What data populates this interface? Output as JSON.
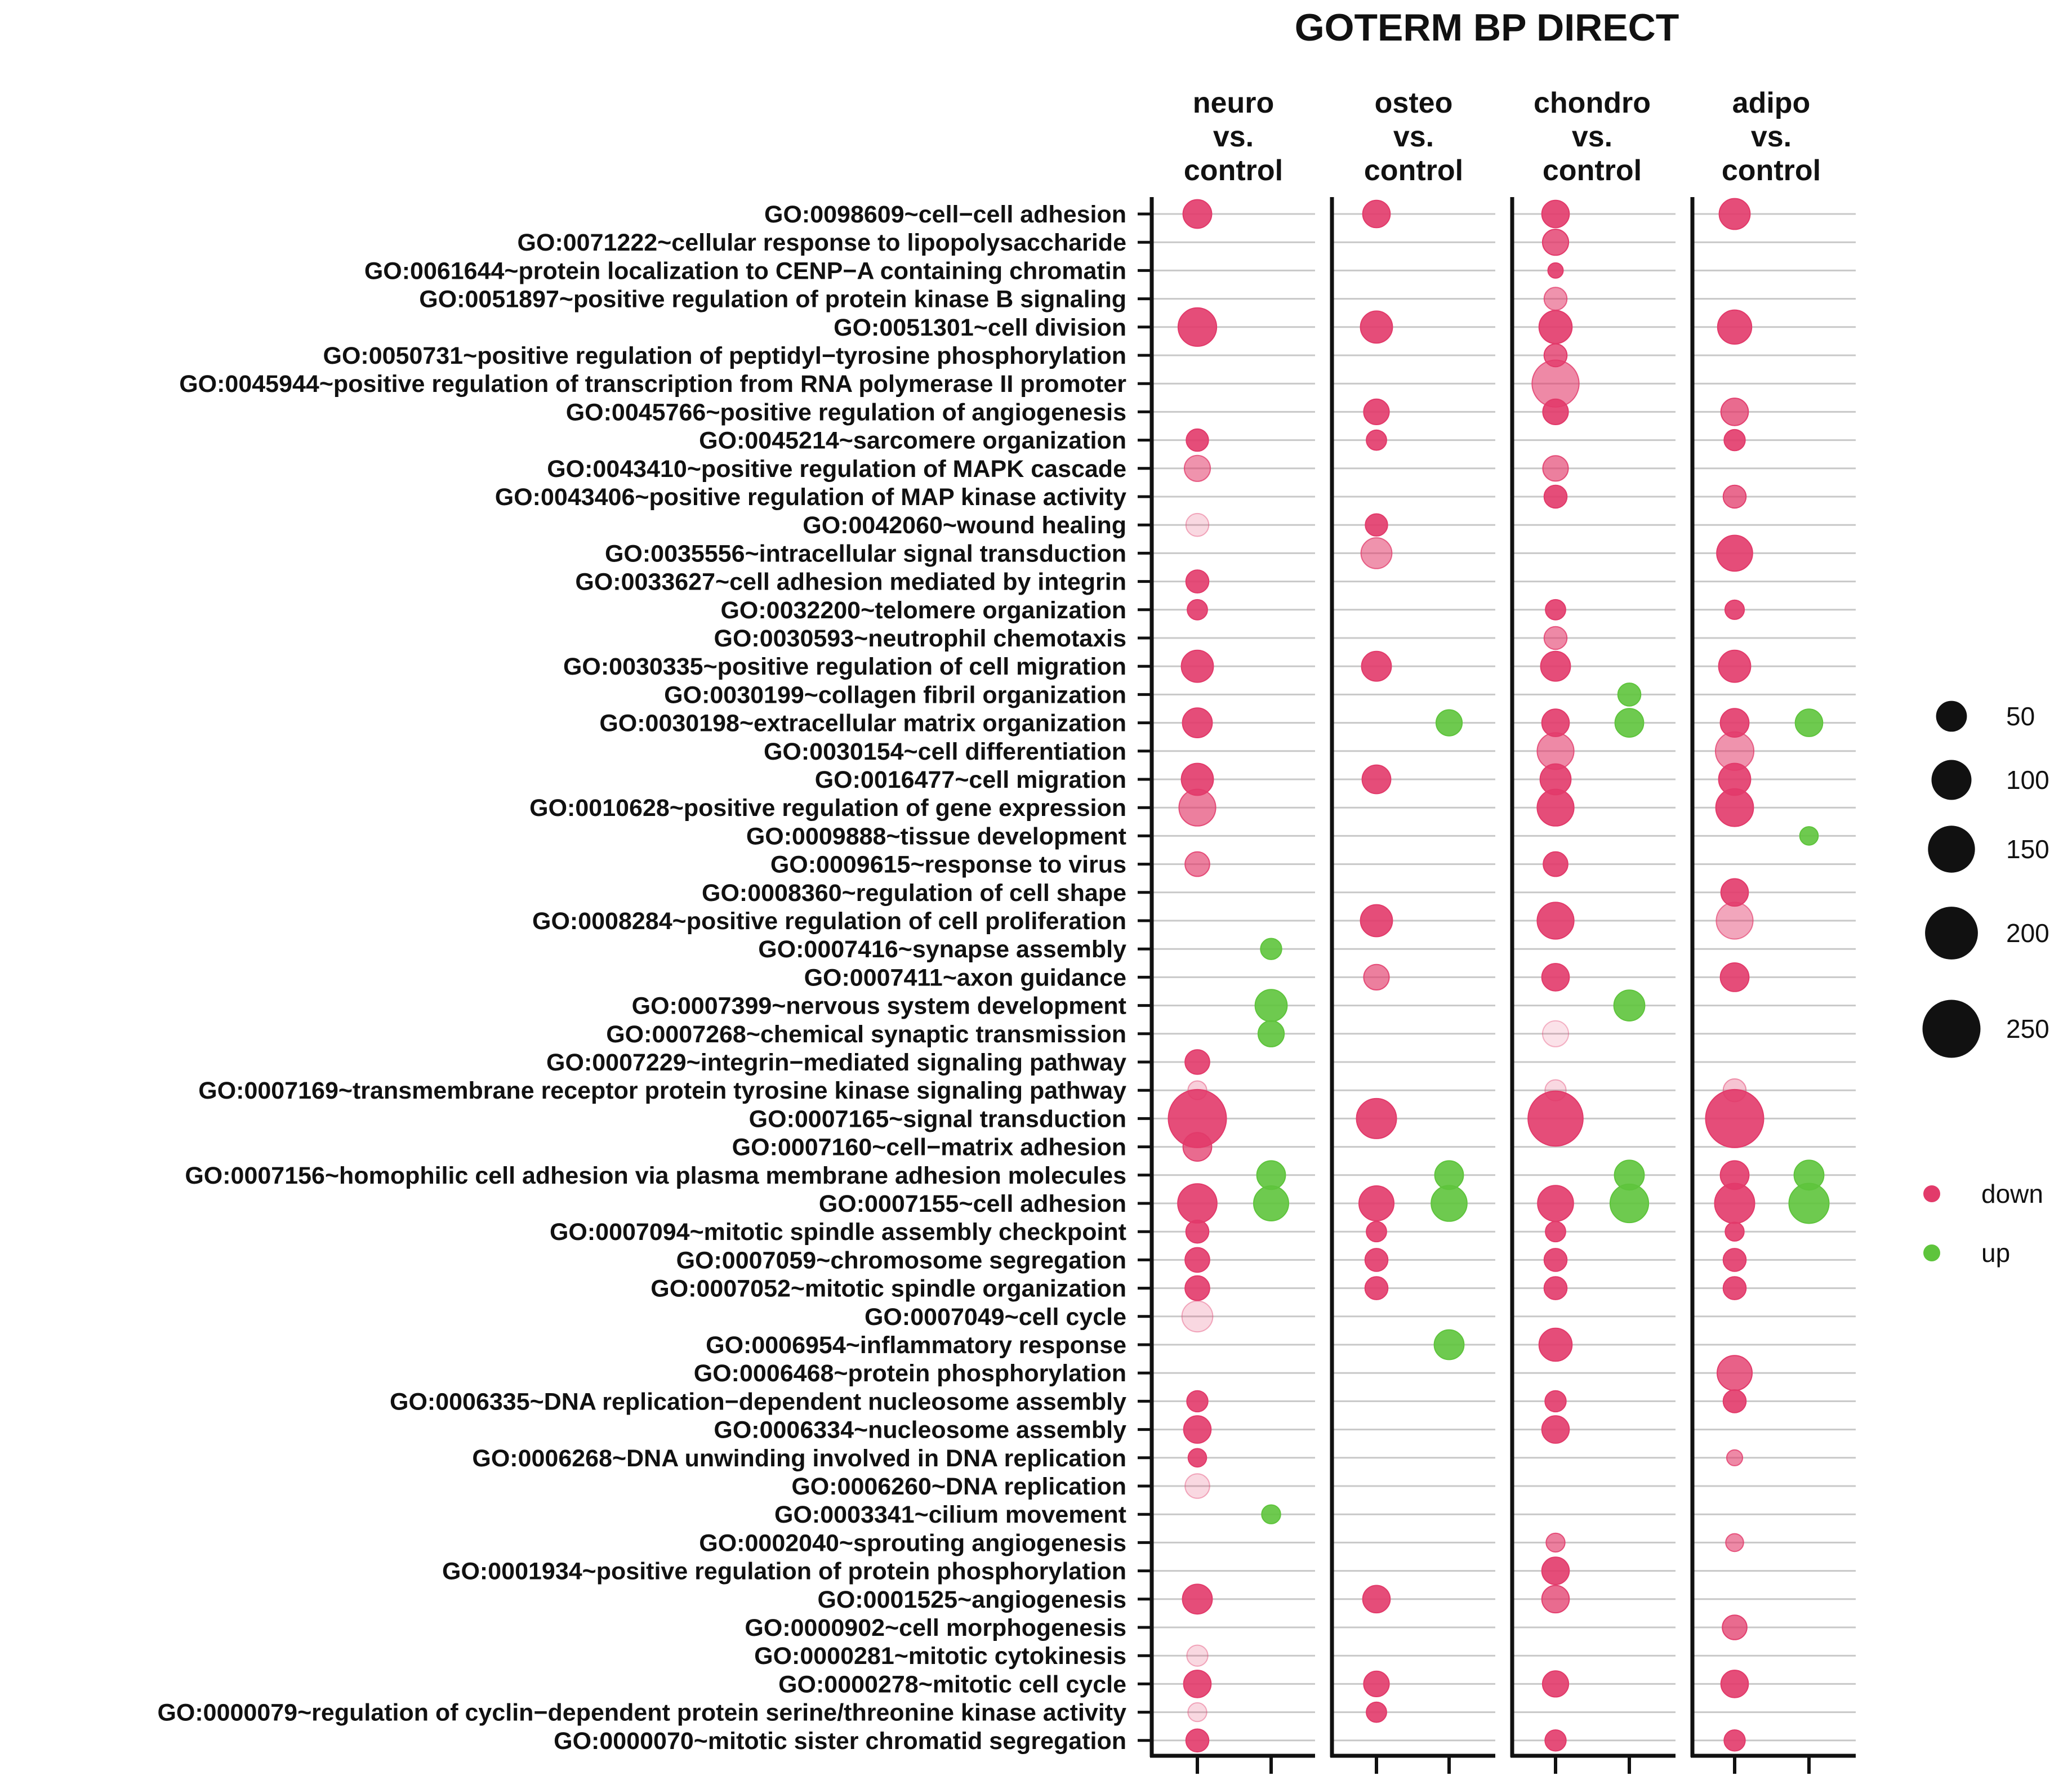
{
  "chart_data": {
    "type": "bubble",
    "title": "GOTERM BP DIRECT",
    "panels": [
      {
        "label": [
          "neuro",
          "vs.",
          "control"
        ]
      },
      {
        "label": [
          "osteo",
          "vs.",
          "control"
        ]
      },
      {
        "label": [
          "chondro",
          "vs.",
          "control"
        ]
      },
      {
        "label": [
          "adipo",
          "vs.",
          "control"
        ]
      }
    ],
    "directions": [
      "down",
      "up"
    ],
    "colors": {
      "down": "#e23a6a",
      "up": "#5ec43c",
      "axis": "#111111",
      "grid": "#c8c8c8"
    },
    "size_legend": [
      {
        "label": "50",
        "value": 50
      },
      {
        "label": "100",
        "value": 100
      },
      {
        "label": "150",
        "value": 150
      },
      {
        "label": "200",
        "value": 200
      },
      {
        "label": "250",
        "value": 250
      }
    ],
    "color_legend": [
      {
        "label": "down",
        "dir": "down"
      },
      {
        "label": "up",
        "dir": "up"
      }
    ],
    "terms": [
      "GO:0098609~cell−cell adhesion",
      "GO:0071222~cellular response to lipopolysaccharide",
      "GO:0061644~protein localization to CENP−A containing chromatin",
      "GO:0051897~positive regulation of protein kinase B signaling",
      "GO:0051301~cell division",
      "GO:0050731~positive regulation of peptidyl−tyrosine phosphorylation",
      "GO:0045944~positive regulation of transcription from RNA polymerase II promoter",
      "GO:0045766~positive regulation of angiogenesis",
      "GO:0045214~sarcomere organization",
      "GO:0043410~positive regulation of MAPK cascade",
      "GO:0043406~positive regulation of MAP kinase activity",
      "GO:0042060~wound healing",
      "GO:0035556~intracellular signal transduction",
      "GO:0033627~cell adhesion mediated by integrin",
      "GO:0032200~telomere organization",
      "GO:0030593~neutrophil chemotaxis",
      "GO:0030335~positive regulation of cell migration",
      "GO:0030199~collagen fibril organization",
      "GO:0030198~extracellular matrix organization",
      "GO:0030154~cell differentiation",
      "GO:0016477~cell migration",
      "GO:0010628~positive regulation of gene expression",
      "GO:0009888~tissue development",
      "GO:0009615~response to virus",
      "GO:0008360~regulation of cell shape",
      "GO:0008284~positive regulation of cell proliferation",
      "GO:0007416~synapse assembly",
      "GO:0007411~axon guidance",
      "GO:0007399~nervous system development",
      "GO:0007268~chemical synaptic transmission",
      "GO:0007229~integrin−mediated signaling pathway",
      "GO:0007169~transmembrane receptor protein tyrosine kinase signaling pathway",
      "GO:0007165~signal transduction",
      "GO:0007160~cell−matrix adhesion",
      "GO:0007156~homophilic cell adhesion via plasma membrane adhesion molecules",
      "GO:0007155~cell adhesion",
      "GO:0007094~mitotic spindle assembly checkpoint",
      "GO:0007059~chromosome segregation",
      "GO:0007052~mitotic spindle organization",
      "GO:0007049~cell cycle",
      "GO:0006954~inflammatory response",
      "GO:0006468~protein phosphorylation",
      "GO:0006335~DNA replication−dependent nucleosome assembly",
      "GO:0006334~nucleosome assembly",
      "GO:0006268~DNA unwinding involved in DNA replication",
      "GO:0006260~DNA replication",
      "GO:0003341~cilium movement",
      "GO:0002040~sprouting angiogenesis",
      "GO:0001934~positive regulation of protein phosphorylation",
      "GO:0001525~angiogenesis",
      "GO:0000902~cell morphogenesis",
      "GO:0000281~mitotic cytokinesis",
      "GO:0000278~mitotic cell cycle",
      "GO:0000079~regulation of cyclin−dependent protein serine/threonine kinase activity",
      "GO:0000070~mitotic sister chromatid segregation"
    ],
    "points": [
      {
        "panel": 0,
        "dir": "down",
        "term": 0,
        "count": 40,
        "alpha": 0.9
      },
      {
        "panel": 0,
        "dir": "down",
        "term": 4,
        "count": 90,
        "alpha": 0.9
      },
      {
        "panel": 0,
        "dir": "down",
        "term": 8,
        "count": 18,
        "alpha": 0.9
      },
      {
        "panel": 0,
        "dir": "down",
        "term": 9,
        "count": 30,
        "alpha": 0.55
      },
      {
        "panel": 0,
        "dir": "down",
        "term": 11,
        "count": 20,
        "alpha": 0.2
      },
      {
        "panel": 0,
        "dir": "down",
        "term": 13,
        "count": 20,
        "alpha": 0.9
      },
      {
        "panel": 0,
        "dir": "down",
        "term": 14,
        "count": 13,
        "alpha": 0.9
      },
      {
        "panel": 0,
        "dir": "down",
        "term": 16,
        "count": 55,
        "alpha": 0.9
      },
      {
        "panel": 0,
        "dir": "down",
        "term": 18,
        "count": 45,
        "alpha": 0.9
      },
      {
        "panel": 0,
        "dir": "down",
        "term": 20,
        "count": 55,
        "alpha": 0.9
      },
      {
        "panel": 0,
        "dir": "down",
        "term": 21,
        "count": 80,
        "alpha": 0.65
      },
      {
        "panel": 0,
        "dir": "down",
        "term": 23,
        "count": 25,
        "alpha": 0.65
      },
      {
        "panel": 0,
        "dir": "down",
        "term": 30,
        "count": 25,
        "alpha": 0.9
      },
      {
        "panel": 0,
        "dir": "down",
        "term": 31,
        "count": 10,
        "alpha": 0.25
      },
      {
        "panel": 0,
        "dir": "down",
        "term": 32,
        "count": 250,
        "alpha": 0.9
      },
      {
        "panel": 0,
        "dir": "down",
        "term": 33,
        "count": 40,
        "alpha": 0.75
      },
      {
        "panel": 0,
        "dir": "down",
        "term": 35,
        "count": 95,
        "alpha": 0.9
      },
      {
        "panel": 0,
        "dir": "down",
        "term": 36,
        "count": 20,
        "alpha": 0.9
      },
      {
        "panel": 0,
        "dir": "down",
        "term": 37,
        "count": 25,
        "alpha": 0.9
      },
      {
        "panel": 0,
        "dir": "down",
        "term": 38,
        "count": 25,
        "alpha": 0.9
      },
      {
        "panel": 0,
        "dir": "down",
        "term": 39,
        "count": 50,
        "alpha": 0.2
      },
      {
        "panel": 0,
        "dir": "down",
        "term": 42,
        "count": 15,
        "alpha": 0.9
      },
      {
        "panel": 0,
        "dir": "down",
        "term": 43,
        "count": 35,
        "alpha": 0.9
      },
      {
        "panel": 0,
        "dir": "down",
        "term": 44,
        "count": 9,
        "alpha": 0.9
      },
      {
        "panel": 0,
        "dir": "down",
        "term": 45,
        "count": 25,
        "alpha": 0.2
      },
      {
        "panel": 0,
        "dir": "down",
        "term": 49,
        "count": 45,
        "alpha": 0.9
      },
      {
        "panel": 0,
        "dir": "down",
        "term": 51,
        "count": 15,
        "alpha": 0.2
      },
      {
        "panel": 0,
        "dir": "down",
        "term": 52,
        "count": 35,
        "alpha": 0.9
      },
      {
        "panel": 0,
        "dir": "down",
        "term": 53,
        "count": 10,
        "alpha": 0.2
      },
      {
        "panel": 0,
        "dir": "down",
        "term": 54,
        "count": 20,
        "alpha": 0.9
      },
      {
        "panel": 0,
        "dir": "up",
        "term": 26,
        "count": 15,
        "alpha": 0.9
      },
      {
        "panel": 0,
        "dir": "up",
        "term": 28,
        "count": 55,
        "alpha": 0.9
      },
      {
        "panel": 0,
        "dir": "up",
        "term": 29,
        "count": 30,
        "alpha": 0.9
      },
      {
        "panel": 0,
        "dir": "up",
        "term": 34,
        "count": 40,
        "alpha": 0.9
      },
      {
        "panel": 0,
        "dir": "up",
        "term": 35,
        "count": 70,
        "alpha": 0.9
      },
      {
        "panel": 0,
        "dir": "up",
        "term": 46,
        "count": 10,
        "alpha": 0.9
      },
      {
        "panel": 1,
        "dir": "down",
        "term": 0,
        "count": 35,
        "alpha": 0.9
      },
      {
        "panel": 1,
        "dir": "down",
        "term": 4,
        "count": 55,
        "alpha": 0.9
      },
      {
        "panel": 1,
        "dir": "down",
        "term": 7,
        "count": 28,
        "alpha": 0.9
      },
      {
        "panel": 1,
        "dir": "down",
        "term": 8,
        "count": 13,
        "alpha": 0.9
      },
      {
        "panel": 1,
        "dir": "down",
        "term": 11,
        "count": 18,
        "alpha": 0.9
      },
      {
        "panel": 1,
        "dir": "down",
        "term": 12,
        "count": 50,
        "alpha": 0.55
      },
      {
        "panel": 1,
        "dir": "down",
        "term": 16,
        "count": 45,
        "alpha": 0.9
      },
      {
        "panel": 1,
        "dir": "down",
        "term": 20,
        "count": 40,
        "alpha": 0.9
      },
      {
        "panel": 1,
        "dir": "down",
        "term": 25,
        "count": 55,
        "alpha": 0.9
      },
      {
        "panel": 1,
        "dir": "down",
        "term": 27,
        "count": 28,
        "alpha": 0.65
      },
      {
        "panel": 1,
        "dir": "down",
        "term": 32,
        "count": 100,
        "alpha": 0.9
      },
      {
        "panel": 1,
        "dir": "down",
        "term": 35,
        "count": 70,
        "alpha": 0.9
      },
      {
        "panel": 1,
        "dir": "down",
        "term": 36,
        "count": 13,
        "alpha": 0.9
      },
      {
        "panel": 1,
        "dir": "down",
        "term": 37,
        "count": 20,
        "alpha": 0.9
      },
      {
        "panel": 1,
        "dir": "down",
        "term": 38,
        "count": 20,
        "alpha": 0.9
      },
      {
        "panel": 1,
        "dir": "down",
        "term": 49,
        "count": 35,
        "alpha": 0.9
      },
      {
        "panel": 1,
        "dir": "down",
        "term": 52,
        "count": 28,
        "alpha": 0.9
      },
      {
        "panel": 1,
        "dir": "down",
        "term": 53,
        "count": 13,
        "alpha": 0.9
      },
      {
        "panel": 1,
        "dir": "up",
        "term": 18,
        "count": 30,
        "alpha": 0.9
      },
      {
        "panel": 1,
        "dir": "up",
        "term": 34,
        "count": 40,
        "alpha": 0.9
      },
      {
        "panel": 1,
        "dir": "up",
        "term": 35,
        "count": 75,
        "alpha": 0.9
      },
      {
        "panel": 1,
        "dir": "up",
        "term": 40,
        "count": 45,
        "alpha": 0.9
      },
      {
        "panel": 2,
        "dir": "down",
        "term": 0,
        "count": 35,
        "alpha": 0.9
      },
      {
        "panel": 2,
        "dir": "down",
        "term": 1,
        "count": 30,
        "alpha": 0.8
      },
      {
        "panel": 2,
        "dir": "down",
        "term": 2,
        "count": 4,
        "alpha": 0.9
      },
      {
        "panel": 2,
        "dir": "down",
        "term": 3,
        "count": 20,
        "alpha": 0.55
      },
      {
        "panel": 2,
        "dir": "down",
        "term": 4,
        "count": 60,
        "alpha": 0.9
      },
      {
        "panel": 2,
        "dir": "down",
        "term": 5,
        "count": 20,
        "alpha": 0.8
      },
      {
        "panel": 2,
        "dir": "down",
        "term": 6,
        "count": 150,
        "alpha": 0.6
      },
      {
        "panel": 2,
        "dir": "down",
        "term": 7,
        "count": 28,
        "alpha": 0.9
      },
      {
        "panel": 2,
        "dir": "down",
        "term": 9,
        "count": 28,
        "alpha": 0.65
      },
      {
        "panel": 2,
        "dir": "down",
        "term": 10,
        "count": 20,
        "alpha": 0.9
      },
      {
        "panel": 2,
        "dir": "down",
        "term": 14,
        "count": 13,
        "alpha": 0.9
      },
      {
        "panel": 2,
        "dir": "down",
        "term": 15,
        "count": 20,
        "alpha": 0.6
      },
      {
        "panel": 2,
        "dir": "down",
        "term": 16,
        "count": 45,
        "alpha": 0.9
      },
      {
        "panel": 2,
        "dir": "down",
        "term": 18,
        "count": 35,
        "alpha": 0.9
      },
      {
        "panel": 2,
        "dir": "down",
        "term": 19,
        "count": 80,
        "alpha": 0.6
      },
      {
        "panel": 2,
        "dir": "down",
        "term": 20,
        "count": 50,
        "alpha": 0.9
      },
      {
        "panel": 2,
        "dir": "down",
        "term": 21,
        "count": 80,
        "alpha": 0.9
      },
      {
        "panel": 2,
        "dir": "down",
        "term": 23,
        "count": 25,
        "alpha": 0.9
      },
      {
        "panel": 2,
        "dir": "down",
        "term": 25,
        "count": 80,
        "alpha": 0.9
      },
      {
        "panel": 2,
        "dir": "down",
        "term": 27,
        "count": 35,
        "alpha": 0.9
      },
      {
        "panel": 2,
        "dir": "down",
        "term": 29,
        "count": 30,
        "alpha": 0.15
      },
      {
        "panel": 2,
        "dir": "down",
        "term": 31,
        "count": 15,
        "alpha": 0.2
      },
      {
        "panel": 2,
        "dir": "down",
        "term": 32,
        "count": 220,
        "alpha": 0.9
      },
      {
        "panel": 2,
        "dir": "down",
        "term": 35,
        "count": 75,
        "alpha": 0.9
      },
      {
        "panel": 2,
        "dir": "down",
        "term": 36,
        "count": 13,
        "alpha": 0.9
      },
      {
        "panel": 2,
        "dir": "down",
        "term": 37,
        "count": 20,
        "alpha": 0.9
      },
      {
        "panel": 2,
        "dir": "down",
        "term": 38,
        "count": 20,
        "alpha": 0.9
      },
      {
        "panel": 2,
        "dir": "down",
        "term": 40,
        "count": 60,
        "alpha": 0.9
      },
      {
        "panel": 2,
        "dir": "down",
        "term": 42,
        "count": 15,
        "alpha": 0.9
      },
      {
        "panel": 2,
        "dir": "down",
        "term": 43,
        "count": 35,
        "alpha": 0.9
      },
      {
        "panel": 2,
        "dir": "down",
        "term": 47,
        "count": 10,
        "alpha": 0.65
      },
      {
        "panel": 2,
        "dir": "down",
        "term": 48,
        "count": 35,
        "alpha": 0.9
      },
      {
        "panel": 2,
        "dir": "down",
        "term": 49,
        "count": 35,
        "alpha": 0.75
      },
      {
        "panel": 2,
        "dir": "down",
        "term": 52,
        "count": 30,
        "alpha": 0.9
      },
      {
        "panel": 2,
        "dir": "down",
        "term": 54,
        "count": 15,
        "alpha": 0.9
      },
      {
        "panel": 2,
        "dir": "up",
        "term": 17,
        "count": 20,
        "alpha": 0.9
      },
      {
        "panel": 2,
        "dir": "up",
        "term": 18,
        "count": 40,
        "alpha": 0.9
      },
      {
        "panel": 2,
        "dir": "up",
        "term": 28,
        "count": 50,
        "alpha": 0.9
      },
      {
        "panel": 2,
        "dir": "up",
        "term": 34,
        "count": 45,
        "alpha": 0.9
      },
      {
        "panel": 2,
        "dir": "up",
        "term": 35,
        "count": 90,
        "alpha": 0.9
      },
      {
        "panel": 3,
        "dir": "down",
        "term": 0,
        "count": 50,
        "alpha": 0.9
      },
      {
        "panel": 3,
        "dir": "down",
        "term": 4,
        "count": 65,
        "alpha": 0.9
      },
      {
        "panel": 3,
        "dir": "down",
        "term": 7,
        "count": 35,
        "alpha": 0.75
      },
      {
        "panel": 3,
        "dir": "down",
        "term": 8,
        "count": 15,
        "alpha": 0.9
      },
      {
        "panel": 3,
        "dir": "down",
        "term": 10,
        "count": 20,
        "alpha": 0.75
      },
      {
        "panel": 3,
        "dir": "down",
        "term": 12,
        "count": 75,
        "alpha": 0.9
      },
      {
        "panel": 3,
        "dir": "down",
        "term": 14,
        "count": 11,
        "alpha": 0.9
      },
      {
        "panel": 3,
        "dir": "down",
        "term": 16,
        "count": 55,
        "alpha": 0.9
      },
      {
        "panel": 3,
        "dir": "down",
        "term": 18,
        "count": 40,
        "alpha": 0.9
      },
      {
        "panel": 3,
        "dir": "down",
        "term": 19,
        "count": 90,
        "alpha": 0.55
      },
      {
        "panel": 3,
        "dir": "down",
        "term": 20,
        "count": 55,
        "alpha": 0.9
      },
      {
        "panel": 3,
        "dir": "down",
        "term": 21,
        "count": 85,
        "alpha": 0.9
      },
      {
        "panel": 3,
        "dir": "down",
        "term": 24,
        "count": 35,
        "alpha": 0.9
      },
      {
        "panel": 3,
        "dir": "down",
        "term": 25,
        "count": 80,
        "alpha": 0.45
      },
      {
        "panel": 3,
        "dir": "down",
        "term": 27,
        "count": 40,
        "alpha": 0.9
      },
      {
        "panel": 3,
        "dir": "down",
        "term": 31,
        "count": 20,
        "alpha": 0.3
      },
      {
        "panel": 3,
        "dir": "down",
        "term": 32,
        "count": 250,
        "alpha": 0.9
      },
      {
        "panel": 3,
        "dir": "down",
        "term": 34,
        "count": 40,
        "alpha": 0.9
      },
      {
        "panel": 3,
        "dir": "down",
        "term": 35,
        "count": 100,
        "alpha": 0.9
      },
      {
        "panel": 3,
        "dir": "down",
        "term": 36,
        "count": 10,
        "alpha": 0.9
      },
      {
        "panel": 3,
        "dir": "down",
        "term": 37,
        "count": 20,
        "alpha": 0.9
      },
      {
        "panel": 3,
        "dir": "down",
        "term": 38,
        "count": 20,
        "alpha": 0.9
      },
      {
        "panel": 3,
        "dir": "down",
        "term": 41,
        "count": 70,
        "alpha": 0.8
      },
      {
        "panel": 3,
        "dir": "down",
        "term": 42,
        "count": 20,
        "alpha": 0.9
      },
      {
        "panel": 3,
        "dir": "down",
        "term": 44,
        "count": 5,
        "alpha": 0.6
      },
      {
        "panel": 3,
        "dir": "down",
        "term": 47,
        "count": 8,
        "alpha": 0.6
      },
      {
        "panel": 3,
        "dir": "down",
        "term": 50,
        "count": 25,
        "alpha": 0.75
      },
      {
        "panel": 3,
        "dir": "down",
        "term": 52,
        "count": 35,
        "alpha": 0.9
      },
      {
        "panel": 3,
        "dir": "down",
        "term": 54,
        "count": 15,
        "alpha": 0.9
      },
      {
        "panel": 3,
        "dir": "up",
        "term": 18,
        "count": 35,
        "alpha": 0.9
      },
      {
        "panel": 3,
        "dir": "up",
        "term": 22,
        "count": 9,
        "alpha": 0.9
      },
      {
        "panel": 3,
        "dir": "up",
        "term": 34,
        "count": 45,
        "alpha": 0.9
      },
      {
        "panel": 3,
        "dir": "up",
        "term": 35,
        "count": 100,
        "alpha": 0.9
      }
    ]
  }
}
